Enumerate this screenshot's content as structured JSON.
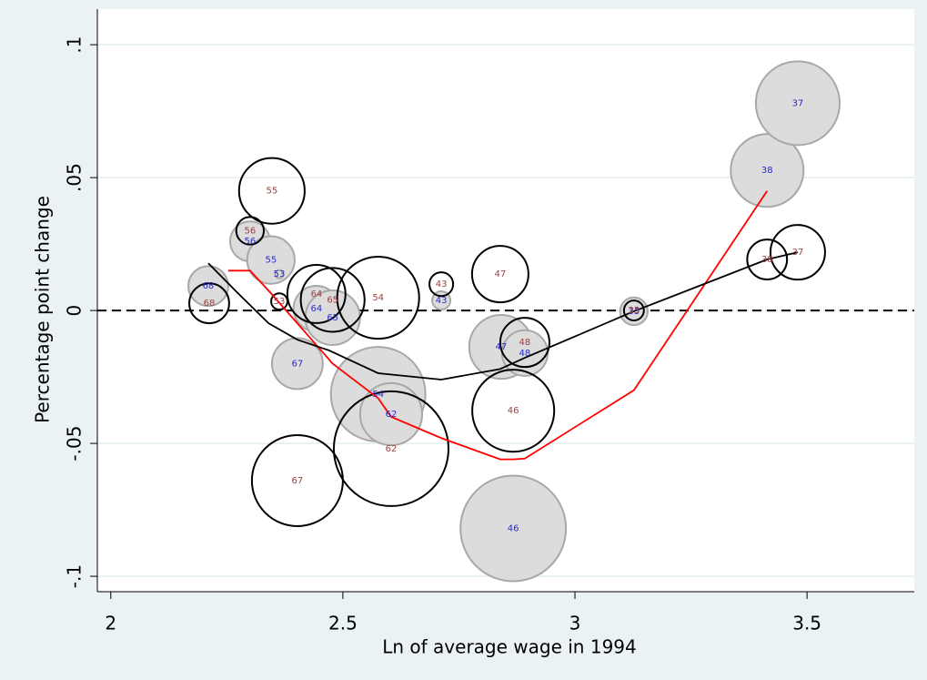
{
  "chart_data": {
    "type": "bubble",
    "ylabel": "Percentage point change",
    "xlabel": "Ln of average wage in 1994",
    "xlim": [
      1.971,
      3.731
    ],
    "ylim": [
      -0.1058,
      0.1134
    ],
    "xticks": [
      2,
      2.5,
      3,
      3.5
    ],
    "yticks": [
      {
        "value": -0.1,
        "label": "-.1"
      },
      {
        "value": -0.05,
        "label": "-.05"
      },
      0,
      {
        "value": 0.05,
        "label": ".05"
      },
      {
        "value": 0.1,
        "label": ".1"
      }
    ],
    "grid": true,
    "yline": 0,
    "series": [
      {
        "kind": "bubble",
        "color": "#dcdcdc",
        "stroke": "#a8a8a8",
        "label_color": "#2a2ad0",
        "x": [
          2.21,
          2.3,
          2.345,
          2.363,
          2.443,
          2.478,
          2.402,
          2.576,
          2.604,
          2.712,
          2.841,
          2.892,
          2.867,
          3.127,
          3.414,
          3.48
        ],
        "values": [
          0.0092,
          0.026,
          0.019,
          0.0137,
          0.0007,
          -0.0027,
          -0.02,
          -0.0315,
          -0.039,
          0.0038,
          -0.0137,
          -0.016,
          -0.082,
          -0.0003,
          0.0527,
          0.078
        ],
        "sizes": [
          48,
          48,
          68,
          2,
          63,
          90,
          78,
          270,
          116,
          10,
          123,
          63,
          336,
          23,
          160,
          212
        ],
        "labels": [
          "68",
          "56",
          "55",
          "53",
          "64",
          "65",
          "67",
          "54",
          "62",
          "43",
          "47",
          "48",
          "46",
          "35",
          "38",
          "37"
        ]
      },
      {
        "kind": "bubble",
        "color": "none",
        "stroke": "#000000",
        "label_color": "#a04040",
        "x": [
          2.212,
          2.3,
          2.347,
          2.363,
          2.443,
          2.478,
          2.576,
          2.712,
          2.839,
          2.892,
          2.867,
          2.604,
          2.402,
          3.127,
          3.414,
          3.48
        ],
        "values": [
          0.0027,
          0.03,
          0.045,
          0.0034,
          0.0062,
          0.004,
          0.0048,
          0.0099,
          0.0137,
          -0.012,
          -0.0377,
          -0.052,
          -0.064,
          0.0,
          0.0192,
          0.0219
        ],
        "sizes": [
          48,
          23,
          130,
          8,
          102,
          123,
          203,
          17,
          96,
          73,
          203,
          397,
          250,
          12,
          48,
          90
        ],
        "labels": [
          "68",
          "56",
          "55",
          "53",
          "64",
          "65",
          "54",
          "43",
          "47",
          "48",
          "46",
          "62",
          "67",
          "35",
          "38",
          "37"
        ]
      },
      {
        "kind": "line",
        "color": "#ff0000",
        "x": [
          2.253,
          2.3,
          2.345,
          2.443,
          2.478,
          2.576,
          2.604,
          2.712,
          2.839,
          2.867,
          2.892,
          3.127,
          3.414
        ],
        "values": [
          0.015,
          0.015,
          0.0065,
          -0.013,
          -0.02,
          -0.033,
          -0.04,
          -0.048,
          -0.056,
          -0.056,
          -0.0557,
          -0.03,
          0.045
        ]
      },
      {
        "kind": "line",
        "color": "#000000",
        "x": [
          2.21,
          2.27,
          2.34,
          2.402,
          2.47,
          2.576,
          2.712,
          2.839,
          2.892,
          3.127,
          3.414,
          3.48
        ],
        "values": [
          0.0178,
          0.0072,
          -0.0048,
          -0.011,
          -0.015,
          -0.0236,
          -0.026,
          -0.022,
          -0.0178,
          -0.0003,
          0.0192,
          0.0219
        ]
      }
    ]
  }
}
